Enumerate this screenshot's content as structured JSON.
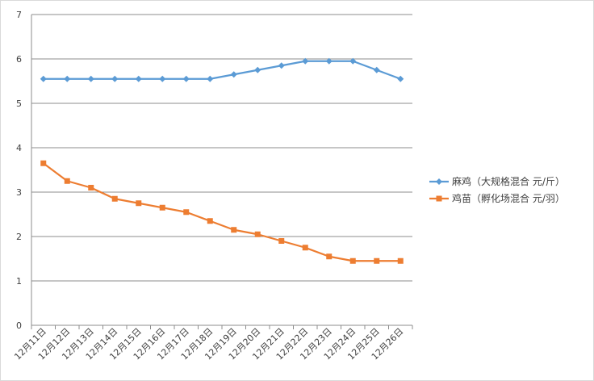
{
  "chart_data": {
    "type": "line",
    "categories": [
      "12月11日",
      "12月12日",
      "12月13日",
      "12月14日",
      "12月15日",
      "12月16日",
      "12月17日",
      "12月18日",
      "12月19日",
      "12月20日",
      "12月21日",
      "12月22日",
      "12月23日",
      "12月24日",
      "12月25日",
      "12月26日"
    ],
    "series": [
      {
        "name": "麻鸡（大规格混合 元/斤）",
        "color": "#5B9BD5",
        "marker": "diamond",
        "values": [
          5.55,
          5.55,
          5.55,
          5.55,
          5.55,
          5.55,
          5.55,
          5.55,
          5.65,
          5.75,
          5.85,
          5.95,
          5.95,
          5.95,
          5.75,
          5.55
        ]
      },
      {
        "name": "鸡苗（孵化场混合 元/羽）",
        "color": "#ED7D31",
        "marker": "square",
        "values": [
          3.65,
          3.25,
          3.1,
          2.85,
          2.75,
          2.65,
          2.55,
          2.35,
          2.15,
          2.05,
          1.9,
          1.75,
          1.55,
          1.45,
          1.45,
          1.45
        ]
      }
    ],
    "ylim": [
      0,
      7
    ],
    "yticks": [
      "0",
      "1",
      "2",
      "3",
      "4",
      "5",
      "6",
      "7"
    ],
    "grid": true,
    "legend": "right"
  }
}
